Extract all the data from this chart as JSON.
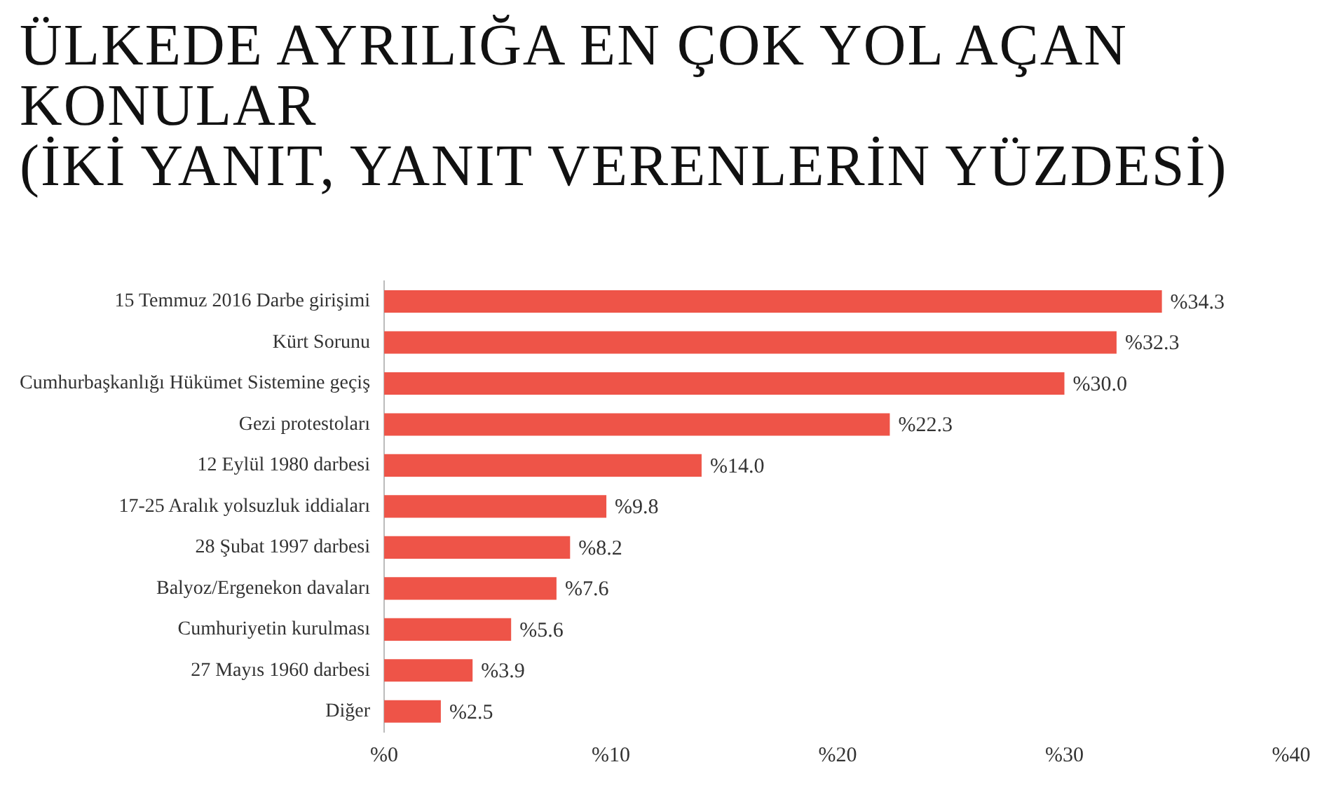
{
  "chart_data": {
    "type": "bar",
    "orientation": "horizontal",
    "title": "ÜLKEDE AYRILIĞA EN ÇOK YOL AÇAN\nKONULAR\n(İKİ YANIT, YANIT VERENLERİN YÜZDESİ)",
    "categories": [
      "15 Temmuz 2016 Darbe girişimi",
      "Kürt Sorunu",
      "Cumhurbaşkanlığı Hükümet Sistemine geçiş",
      "Gezi protestoları",
      "12 Eylül 1980 darbesi",
      "17-25 Aralık yolsuzluk iddiaları",
      "28 Şubat 1997 darbesi",
      "Balyoz/Ergenekon davaları",
      "Cumhuriyetin kurulması",
      "27 Mayıs 1960 darbesi",
      "Diğer"
    ],
    "values": [
      34.3,
      32.3,
      30.0,
      22.3,
      14.0,
      9.8,
      8.2,
      7.6,
      5.6,
      3.9,
      2.5
    ],
    "value_labels": [
      "%34.3",
      "%32.3",
      "%30.0",
      "%22.3",
      "%14.0",
      "%9.8",
      "%8.2",
      "%7.6",
      "%5.6",
      "%3.9",
      "%2.5"
    ],
    "color": "#ee5448",
    "xlim": [
      0,
      40
    ],
    "xticks": [
      {
        "value": 0,
        "label": "%0"
      },
      {
        "value": 10,
        "label": "%10"
      },
      {
        "value": 20,
        "label": "%20"
      },
      {
        "value": 30,
        "label": "%30"
      },
      {
        "value": 40,
        "label": "%40"
      }
    ],
    "grid": false,
    "legend": false
  }
}
